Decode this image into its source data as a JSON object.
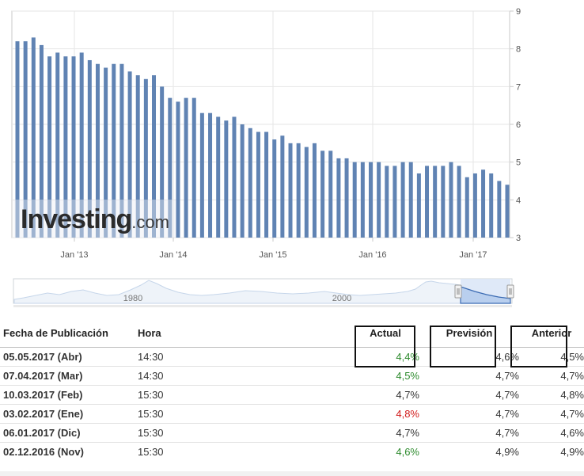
{
  "chart_data": {
    "type": "bar",
    "values": [
      8.2,
      8.2,
      8.3,
      8.1,
      7.8,
      7.9,
      7.8,
      7.8,
      7.9,
      7.7,
      7.6,
      7.5,
      7.6,
      7.6,
      7.4,
      7.3,
      7.2,
      7.3,
      7.0,
      6.7,
      6.6,
      6.7,
      6.7,
      6.3,
      6.3,
      6.2,
      6.1,
      6.2,
      6.0,
      5.9,
      5.8,
      5.8,
      5.6,
      5.7,
      5.5,
      5.5,
      5.4,
      5.5,
      5.3,
      5.3,
      5.1,
      5.1,
      5.0,
      5.0,
      5.0,
      5.0,
      4.9,
      4.9,
      5.0,
      5.0,
      4.7,
      4.9,
      4.9,
      4.9,
      5.0,
      4.9,
      4.6,
      4.7,
      4.8,
      4.7,
      4.5,
      4.4
    ],
    "x_ticks": [
      "Jan '13",
      "Jan '14",
      "Jan '15",
      "Jan '16",
      "Jan '17"
    ],
    "y_ticks": [
      "3",
      "4",
      "5",
      "6",
      "7",
      "8",
      "9"
    ],
    "ylim": [
      3,
      9
    ],
    "grid": true,
    "navigator_labels": [
      "1980",
      "2000"
    ],
    "bar_color": "#6083b3"
  },
  "watermark": {
    "brand": "Investing",
    "suffix": ".com"
  },
  "table": {
    "headers": {
      "fecha": "Fecha de Publicación",
      "hora": "Hora",
      "actual": "Actual",
      "prevision": "Previsión",
      "anterior": "Anterior"
    },
    "rows": [
      {
        "fecha": "05.05.2017 (Abr)",
        "hora": "14:30",
        "actual": "4,4%",
        "prevision": "4,6%",
        "anterior": "4,5%",
        "actual_color": "green"
      },
      {
        "fecha": "07.04.2017 (Mar)",
        "hora": "14:30",
        "actual": "4,5%",
        "prevision": "4,7%",
        "anterior": "4,7%",
        "actual_color": "green"
      },
      {
        "fecha": "10.03.2017 (Feb)",
        "hora": "15:30",
        "actual": "4,7%",
        "prevision": "4,7%",
        "anterior": "4,8%",
        "actual_color": "neutral"
      },
      {
        "fecha": "03.02.2017 (Ene)",
        "hora": "15:30",
        "actual": "4,8%",
        "prevision": "4,7%",
        "anterior": "4,7%",
        "actual_color": "red"
      },
      {
        "fecha": "06.01.2017 (Dic)",
        "hora": "15:30",
        "actual": "4,7%",
        "prevision": "4,7%",
        "anterior": "4,6%",
        "actual_color": "neutral"
      },
      {
        "fecha": "02.12.2016 (Nov)",
        "hora": "15:30",
        "actual": "4,6%",
        "prevision": "4,9%",
        "anterior": "4,9%",
        "actual_color": "green"
      }
    ]
  }
}
